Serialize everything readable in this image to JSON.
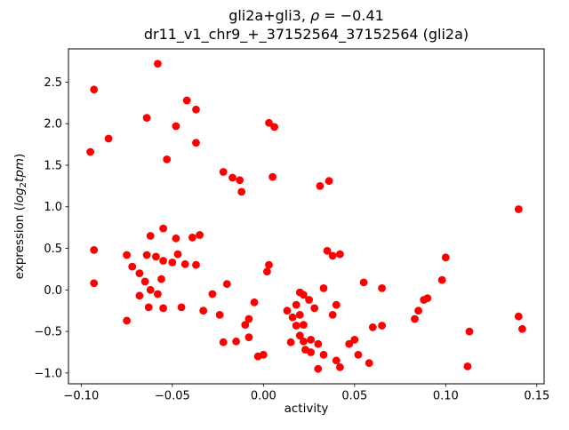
{
  "chart_data": {
    "type": "scatter",
    "title_line1": {
      "prefix": "gli2a+gli3, ",
      "rho": "ρ",
      "rest": " = −0.41"
    },
    "title_line2": "dr11_v1_chr9_+_37152564_37152564 (gli2a)",
    "xlabel": "activity",
    "ylabel": {
      "prefix": "expression (",
      "log": "log",
      "sub": "2",
      "tpm": "tpm",
      "suffix": ")"
    },
    "correlation_rho": -0.41,
    "marker_color": "#ff0000",
    "marker_radius": 4.4,
    "grid": false,
    "legend": "none",
    "xlim": [
      -0.107,
      0.154
    ],
    "ylim": [
      -1.13,
      2.9
    ],
    "xticks": {
      "values": [
        -0.1,
        -0.05,
        0.0,
        0.05,
        0.1,
        0.15
      ],
      "labels": [
        "−0.10",
        "−0.05",
        "0.00",
        "0.05",
        "0.10",
        "0.15"
      ]
    },
    "yticks": {
      "values": [
        -1.0,
        -0.5,
        0.0,
        0.5,
        1.0,
        1.5,
        2.0,
        2.5
      ],
      "labels": [
        "−1.0",
        "−0.5",
        "0.0",
        "0.5",
        "1.0",
        "1.5",
        "2.0",
        "2.5"
      ]
    },
    "points": [
      [
        -0.058,
        2.72
      ],
      [
        -0.093,
        2.41
      ],
      [
        -0.042,
        2.28
      ],
      [
        -0.037,
        2.17
      ],
      [
        -0.064,
        2.07
      ],
      [
        -0.048,
        1.97
      ],
      [
        0.003,
        2.01
      ],
      [
        0.006,
        1.96
      ],
      [
        -0.085,
        1.82
      ],
      [
        -0.037,
        1.77
      ],
      [
        -0.095,
        1.66
      ],
      [
        -0.053,
        1.57
      ],
      [
        -0.022,
        1.42
      ],
      [
        0.005,
        1.36
      ],
      [
        -0.017,
        1.35
      ],
      [
        -0.013,
        1.32
      ],
      [
        0.036,
        1.31
      ],
      [
        0.031,
        1.25
      ],
      [
        -0.012,
        1.18
      ],
      [
        0.14,
        0.97
      ],
      [
        -0.055,
        0.74
      ],
      [
        -0.062,
        0.65
      ],
      [
        -0.035,
        0.66
      ],
      [
        -0.039,
        0.63
      ],
      [
        -0.048,
        0.62
      ],
      [
        -0.093,
        0.48
      ],
      [
        0.035,
        0.47
      ],
      [
        -0.047,
        0.43
      ],
      [
        0.042,
        0.43
      ],
      [
        0.038,
        0.41
      ],
      [
        -0.075,
        0.42
      ],
      [
        -0.064,
        0.42
      ],
      [
        -0.059,
        0.4
      ],
      [
        0.1,
        0.39
      ],
      [
        -0.055,
        0.35
      ],
      [
        -0.05,
        0.33
      ],
      [
        -0.043,
        0.31
      ],
      [
        -0.037,
        0.3
      ],
      [
        0.003,
        0.3
      ],
      [
        0.002,
        0.22
      ],
      [
        -0.072,
        0.28
      ],
      [
        -0.068,
        0.2
      ],
      [
        -0.065,
        0.1
      ],
      [
        -0.056,
        0.13
      ],
      [
        -0.093,
        0.08
      ],
      [
        -0.02,
        0.07
      ],
      [
        0.055,
        0.09
      ],
      [
        0.098,
        0.12
      ],
      [
        0.065,
        0.02
      ],
      [
        0.033,
        0.02
      ],
      [
        -0.062,
        0.0
      ],
      [
        -0.058,
        -0.05
      ],
      [
        -0.068,
        -0.07
      ],
      [
        -0.028,
        -0.05
      ],
      [
        0.02,
        -0.03
      ],
      [
        0.022,
        -0.06
      ],
      [
        0.025,
        -0.12
      ],
      [
        0.088,
        -0.12
      ],
      [
        0.09,
        -0.1
      ],
      [
        -0.005,
        -0.15
      ],
      [
        0.018,
        -0.18
      ],
      [
        0.04,
        -0.18
      ],
      [
        -0.063,
        -0.21
      ],
      [
        -0.055,
        -0.22
      ],
      [
        -0.045,
        -0.21
      ],
      [
        -0.033,
        -0.25
      ],
      [
        0.013,
        -0.25
      ],
      [
        0.028,
        -0.22
      ],
      [
        0.085,
        -0.25
      ],
      [
        -0.024,
        -0.3
      ],
      [
        0.016,
        -0.33
      ],
      [
        0.02,
        -0.3
      ],
      [
        0.038,
        -0.3
      ],
      [
        0.14,
        -0.32
      ],
      [
        -0.008,
        -0.35
      ],
      [
        0.083,
        -0.35
      ],
      [
        -0.075,
        -0.37
      ],
      [
        -0.01,
        -0.42
      ],
      [
        0.018,
        -0.43
      ],
      [
        0.022,
        -0.42
      ],
      [
        0.06,
        -0.45
      ],
      [
        0.065,
        -0.43
      ],
      [
        0.142,
        -0.47
      ],
      [
        0.113,
        -0.5
      ],
      [
        0.02,
        -0.55
      ],
      [
        -0.008,
        -0.57
      ],
      [
        0.05,
        -0.6
      ],
      [
        0.026,
        -0.6
      ],
      [
        -0.015,
        -0.62
      ],
      [
        0.022,
        -0.62
      ],
      [
        -0.022,
        -0.63
      ],
      [
        0.015,
        -0.63
      ],
      [
        0.03,
        -0.65
      ],
      [
        0.047,
        -0.65
      ],
      [
        0.023,
        -0.72
      ],
      [
        0.026,
        -0.75
      ],
      [
        0.0,
        -0.78
      ],
      [
        -0.003,
        -0.8
      ],
      [
        0.033,
        -0.78
      ],
      [
        0.052,
        -0.78
      ],
      [
        0.04,
        -0.85
      ],
      [
        0.058,
        -0.88
      ],
      [
        0.042,
        -0.93
      ],
      [
        0.112,
        -0.92
      ],
      [
        0.03,
        -0.95
      ]
    ]
  }
}
